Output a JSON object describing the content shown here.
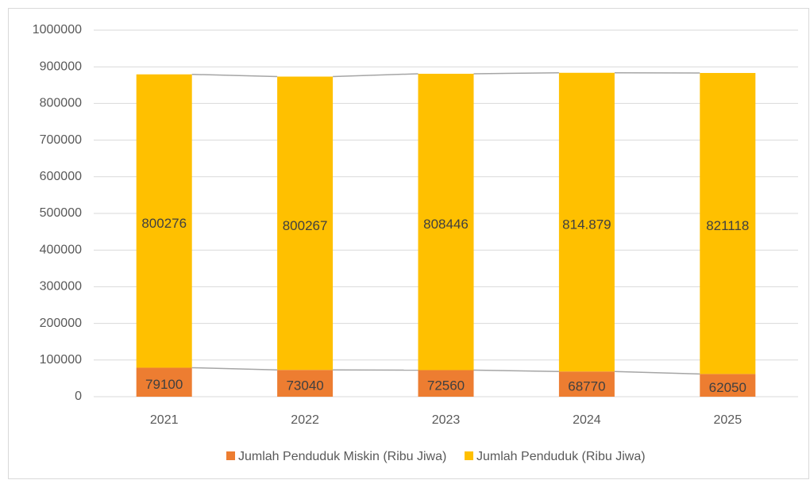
{
  "chart_data": {
    "type": "stacked_bar",
    "categories": [
      "2021",
      "2022",
      "2023",
      "2024",
      "2025"
    ],
    "series": [
      {
        "name": "Jumlah Penduduk Miskin (Ribu Jiwa)",
        "color": "#ed7d31",
        "values": [
          79100,
          73040,
          72560,
          68770,
          62050
        ]
      },
      {
        "name": "Jumlah Penduduk (Ribu Jiwa)",
        "color": "#ffc000",
        "values": [
          800276,
          800267,
          808446,
          814879,
          821118
        ],
        "value_labels": [
          "800276",
          "800267",
          "808446",
          "814.879",
          "821118"
        ]
      }
    ],
    "ylim": [
      0,
      1000000
    ],
    "yticks": [
      0,
      100000,
      200000,
      300000,
      400000,
      500000,
      600000,
      700000,
      800000,
      900000,
      1000000
    ],
    "grid": true,
    "legend": "bottom"
  }
}
